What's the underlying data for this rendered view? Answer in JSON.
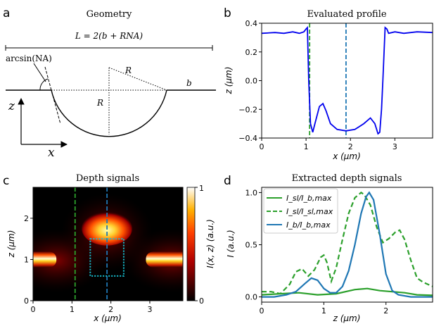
{
  "panels": {
    "a": {
      "letter": "a",
      "title": "Geometry",
      "L_label": "L = 2(b + RNA)",
      "arcsin_label": "arcsin(NA)",
      "R_label": "R",
      "R2_label": "R",
      "b_label": "b",
      "z_label": "z",
      "x_label": "x"
    },
    "b": {
      "letter": "b",
      "title": "Evaluated profile",
      "xlabel": "x (μm)",
      "ylabel": "z (μm)",
      "xticks": [
        "0",
        "1",
        "2",
        "3"
      ],
      "yticks": [
        "0.4",
        "0.2",
        "0.0",
        "−0.2",
        "−0.4"
      ]
    },
    "c": {
      "letter": "c",
      "title": "Depth signals",
      "xlabel": "x (μm)",
      "ylabel": "z (μm)",
      "xticks": [
        "0",
        "1",
        "2",
        "3"
      ],
      "yticks": [
        "0",
        "1",
        "2"
      ],
      "colorbar_label": "I(x, z) (a.u.)",
      "colorbar_ticks": [
        "1",
        "0"
      ]
    },
    "d": {
      "letter": "d",
      "title": "Extracted depth signals",
      "xlabel": "z (μm)",
      "ylabel": "I (a.u.)",
      "xticks": [
        "0",
        "1",
        "2"
      ],
      "yticks": [
        "1.0",
        "0.5",
        "0.0"
      ],
      "legend": [
        "I_sl/I_b,max",
        "I_sl/I_sl,max",
        "I_b/I_b,max"
      ]
    }
  },
  "colors": {
    "profile": "#0000ee",
    "green": "#2ca02c",
    "blue": "#1f77b4",
    "cyan": "#17becf"
  },
  "chart_data": [
    {
      "type": "line",
      "title": "Evaluated profile",
      "xlabel": "x (μm)",
      "ylabel": "z (μm)",
      "xlim": [
        0,
        3.85
      ],
      "ylim": [
        -0.4,
        0.4
      ],
      "series": [
        {
          "name": "profile",
          "x": [
            0,
            0.3,
            0.5,
            0.7,
            0.85,
            0.95,
            1.0,
            1.03,
            1.06,
            1.1,
            1.15,
            1.2,
            1.3,
            1.38,
            1.45,
            1.55,
            1.7,
            1.9,
            2.1,
            2.3,
            2.45,
            2.55,
            2.62,
            2.66,
            2.7,
            2.73,
            2.78,
            2.82,
            2.86,
            3.0,
            3.2,
            3.5,
            3.85
          ],
          "y": [
            0.33,
            0.335,
            0.33,
            0.34,
            0.33,
            0.34,
            0.36,
            0.37,
            0.0,
            -0.3,
            -0.36,
            -0.3,
            -0.18,
            -0.16,
            -0.21,
            -0.3,
            -0.34,
            -0.35,
            -0.34,
            -0.3,
            -0.26,
            -0.3,
            -0.37,
            -0.36,
            -0.2,
            0.0,
            0.37,
            0.36,
            0.33,
            0.34,
            0.33,
            0.34,
            0.335
          ]
        }
      ],
      "vlines": [
        {
          "x": 1.08,
          "color": "green"
        },
        {
          "x": 1.9,
          "color": "blue"
        }
      ]
    },
    {
      "type": "heatmap",
      "title": "Depth signals",
      "xlabel": "x (μm)",
      "ylabel": "z (μm)",
      "xlim": [
        0,
        3.85
      ],
      "ylim": [
        0,
        2.75
      ],
      "colorbar": {
        "label": "I(x, z) (a.u.)",
        "range": [
          0,
          1
        ]
      },
      "features": [
        {
          "name": "left bright band",
          "x": [
            0,
            0.6
          ],
          "z": 1.0
        },
        {
          "name": "right bright band",
          "x": [
            2.9,
            3.85
          ],
          "z": 1.0
        },
        {
          "name": "central dome",
          "x": [
            1.25,
            2.55
          ],
          "z": 1.75
        }
      ],
      "vlines": [
        {
          "x": 1.08,
          "color": "green"
        },
        {
          "x": 1.9,
          "color": "blue"
        }
      ],
      "roi_box": {
        "x": [
          1.47,
          2.33
        ],
        "z": [
          0.6,
          1.5
        ]
      }
    },
    {
      "type": "line",
      "title": "Extracted depth signals",
      "xlabel": "z (μm)",
      "ylabel": "I (a.u.)",
      "xlim": [
        0,
        2.75
      ],
      "ylim": [
        -0.05,
        1.05
      ],
      "series": [
        {
          "name": "I_sl/I_b,max",
          "style": "solid",
          "color": "green",
          "x": [
            0,
            0.3,
            0.6,
            0.9,
            1.2,
            1.5,
            1.7,
            1.9,
            2.1,
            2.3,
            2.5,
            2.75
          ],
          "y": [
            0.02,
            0.03,
            0.04,
            0.02,
            0.03,
            0.07,
            0.08,
            0.06,
            0.05,
            0.04,
            0.02,
            0.015
          ]
        },
        {
          "name": "I_sl/I_sl,max",
          "style": "dashed",
          "color": "green",
          "x": [
            0,
            0.15,
            0.3,
            0.45,
            0.55,
            0.65,
            0.75,
            0.85,
            0.95,
            1.0,
            1.05,
            1.12,
            1.2,
            1.3,
            1.4,
            1.5,
            1.6,
            1.65,
            1.75,
            1.85,
            1.95,
            2.05,
            2.15,
            2.22,
            2.3,
            2.4,
            2.5,
            2.6,
            2.75
          ],
          "y": [
            0.05,
            0.05,
            0.03,
            0.12,
            0.24,
            0.27,
            0.2,
            0.26,
            0.38,
            0.4,
            0.33,
            0.15,
            0.28,
            0.55,
            0.8,
            0.95,
            1.0,
            0.98,
            0.88,
            0.67,
            0.52,
            0.56,
            0.62,
            0.64,
            0.55,
            0.35,
            0.18,
            0.14,
            0.1
          ]
        },
        {
          "name": "I_b/I_b,max",
          "style": "solid",
          "color": "blue",
          "x": [
            0,
            0.2,
            0.4,
            0.55,
            0.7,
            0.8,
            0.9,
            1.0,
            1.1,
            1.2,
            1.3,
            1.4,
            1.5,
            1.6,
            1.68,
            1.73,
            1.8,
            1.9,
            2.0,
            2.1,
            2.2,
            2.4,
            2.6,
            2.75
          ],
          "y": [
            0.0,
            0.0,
            0.02,
            0.05,
            0.13,
            0.18,
            0.16,
            0.08,
            0.04,
            0.04,
            0.1,
            0.25,
            0.5,
            0.8,
            0.96,
            1.0,
            0.93,
            0.6,
            0.22,
            0.06,
            0.02,
            0.0,
            0.0,
            0.0
          ]
        }
      ]
    }
  ]
}
